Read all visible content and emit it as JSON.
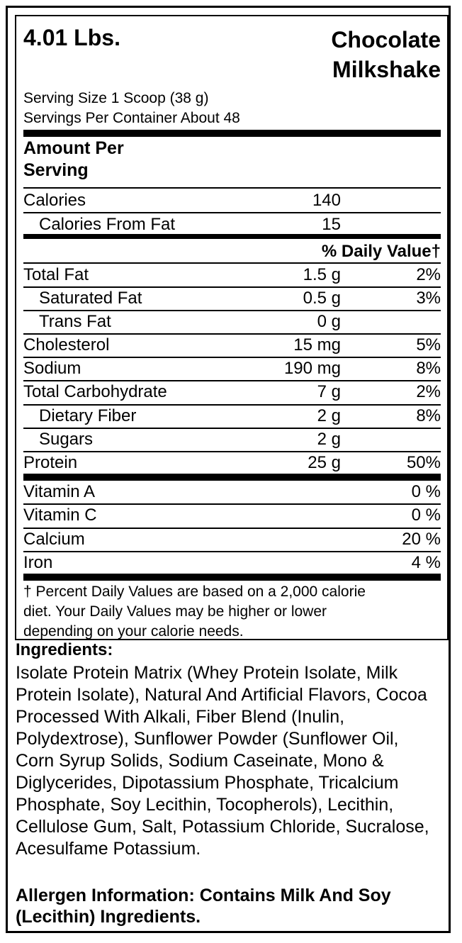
{
  "header": {
    "weight": "4.01 Lbs.",
    "flavor_line1": "Chocolate",
    "flavor_line2": "Milkshake",
    "serving_size": "Serving Size 1 Scoop (38 g)",
    "servings_per_container": "Servings Per Container About 48"
  },
  "amount_per_serving": {
    "line1": "Amount Per",
    "line2": "Serving"
  },
  "calories": {
    "label": "Calories",
    "value": "140"
  },
  "calories_from_fat": {
    "label": "Calories From Fat",
    "value": "15"
  },
  "daily_value_header": "% Daily Value†",
  "nutrients": [
    {
      "label": "Total Fat",
      "amount": "1.5 g",
      "pct": "2%"
    },
    {
      "label": "Saturated Fat",
      "amount": "0.5 g",
      "pct": "3%"
    },
    {
      "label": "Trans Fat",
      "amount": "0 g",
      "pct": ""
    },
    {
      "label": "Cholesterol",
      "amount": "15 mg",
      "pct": "5%"
    },
    {
      "label": "Sodium",
      "amount": "190 mg",
      "pct": "8%"
    },
    {
      "label": "Total Carbohydrate",
      "amount": "7 g",
      "pct": "2%"
    },
    {
      "label": "Dietary Fiber",
      "amount": "2 g",
      "pct": "8%"
    },
    {
      "label": "Sugars",
      "amount": "2 g",
      "pct": ""
    },
    {
      "label": "Protein",
      "amount": "25 g",
      "pct": "50%"
    }
  ],
  "vitamins": [
    {
      "label": "Vitamin A",
      "pct": "0 %"
    },
    {
      "label": "Vitamin C",
      "pct": "0 %"
    },
    {
      "label": "Calcium",
      "pct": "20 %"
    },
    {
      "label": "Iron",
      "pct": "4 %"
    }
  ],
  "footnote": {
    "line1": "† Percent Daily Values are based on a 2,000 calorie",
    "line2": "diet. Your Daily Values may be higher or lower",
    "line3": "depending on your calorie needs."
  },
  "ingredients": {
    "heading": "Ingredients:",
    "text": "Isolate Protein Matrix (Whey Protein Isolate, Milk Protein Isolate), Natural And Artificial Flavors, Cocoa Processed With Alkali, Fiber Blend (Inulin, Polydextrose), Sunflower Powder (Sunflower Oil, Corn Syrup Solids, Sodium Caseinate, Mono & Diglycerides, Dipotassium Phosphate, Tricalcium Phosphate, Soy Lecithin, Tocopherols), Lecithin, Cellulose Gum, Salt, Potassium Chloride, Sucralose, Acesulfame Potassium."
  },
  "allergen": "Allergen Information: Contains Milk And Soy (Lecithin) Ingredients."
}
